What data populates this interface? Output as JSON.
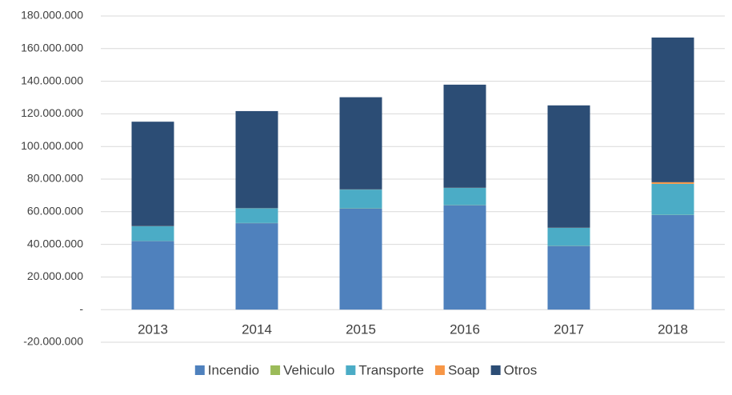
{
  "chart_data": {
    "type": "stacked-bar",
    "categories": [
      "2013",
      "2014",
      "2015",
      "2016",
      "2017",
      "2018"
    ],
    "series": [
      {
        "name": "Incendio",
        "color": "#4f81bd",
        "values": [
          42000000,
          53000000,
          62000000,
          64000000,
          39000000,
          58000000
        ]
      },
      {
        "name": "Vehiculo",
        "color": "#9bbb59",
        "values": [
          100000,
          100000,
          100000,
          100000,
          100000,
          100000
        ]
      },
      {
        "name": "Transporte",
        "color": "#4bacc6",
        "values": [
          9000000,
          9000000,
          11500000,
          10500000,
          11000000,
          19000000
        ]
      },
      {
        "name": "Soap",
        "color": "#f79646",
        "values": [
          100000,
          100000,
          100000,
          100000,
          100000,
          1000000
        ]
      },
      {
        "name": "Otros",
        "color": "#2c4d75",
        "values": [
          64000000,
          59500000,
          56500000,
          63200000,
          75000000,
          88700000
        ]
      }
    ],
    "ylim": [
      -20000000,
      180000000
    ],
    "yticks": [
      {
        "value": -20000000,
        "label": "-20.000.000"
      },
      {
        "value": 0,
        "label": "-"
      },
      {
        "value": 20000000,
        "label": "20.000.000"
      },
      {
        "value": 40000000,
        "label": "40.000.000"
      },
      {
        "value": 60000000,
        "label": "60.000.000"
      },
      {
        "value": 80000000,
        "label": "80.000.000"
      },
      {
        "value": 100000000,
        "label": "100.000.000"
      },
      {
        "value": 120000000,
        "label": "120.000.000"
      },
      {
        "value": 140000000,
        "label": "140.000.000"
      },
      {
        "value": 160000000,
        "label": "160.000.000"
      },
      {
        "value": 180000000,
        "label": "180.000.000"
      }
    ],
    "grid": true,
    "legend": "bottom"
  }
}
